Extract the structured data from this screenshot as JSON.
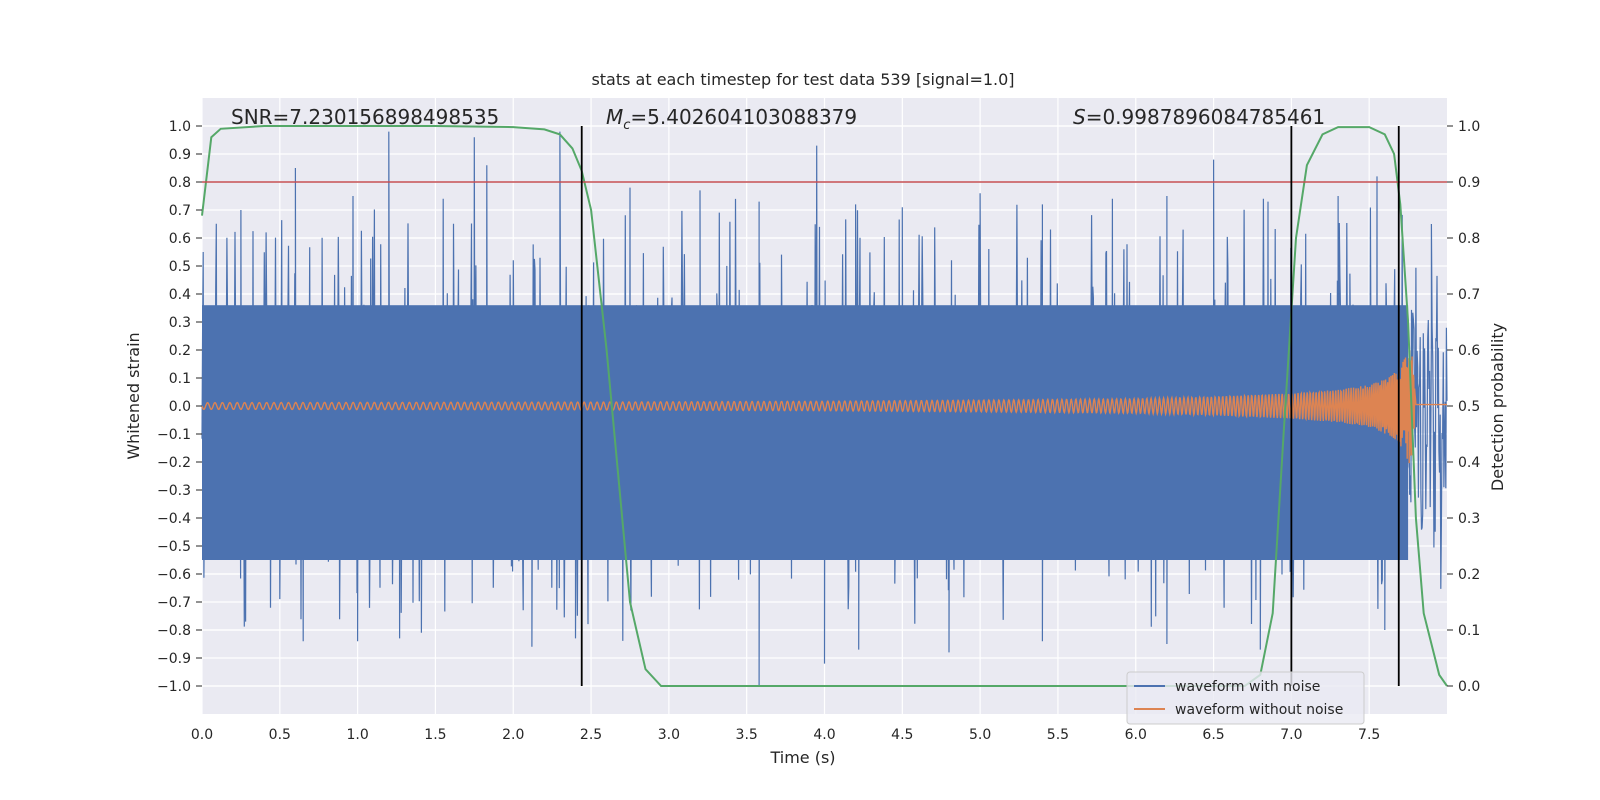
{
  "chart_data": {
    "type": "line",
    "title": "stats at each timestep for test data 539 [signal=1.0]",
    "xlabel": "Time (s)",
    "ylabel": "Whitened strain",
    "y2label": "Detection probability",
    "xlim": [
      0.0,
      8.0
    ],
    "ylim": [
      -1.1,
      1.1
    ],
    "y2lim": [
      -0.05,
      1.05
    ],
    "x_ticks": [
      "0.0",
      "0.5",
      "1.0",
      "1.5",
      "2.0",
      "2.5",
      "3.0",
      "3.5",
      "4.0",
      "4.5",
      "5.0",
      "5.5",
      "6.0",
      "6.5",
      "7.0",
      "7.5"
    ],
    "y_ticks": [
      "1.0",
      "0.9",
      "0.8",
      "0.7",
      "0.6",
      "0.5",
      "0.4",
      "0.3",
      "0.2",
      "0.1",
      "0.0",
      "−0.1",
      "−0.2",
      "−0.3",
      "−0.4",
      "−0.5",
      "−0.6",
      "−0.7",
      "−0.8",
      "−0.9",
      "−1.0"
    ],
    "y2_ticks": [
      "1.0",
      "0.9",
      "0.8",
      "0.7",
      "0.6",
      "0.5",
      "0.4",
      "0.3",
      "0.2",
      "0.1",
      "0.0"
    ],
    "grid": true,
    "annotations": {
      "snr": "SNR=7.230156898498535",
      "mc_symbol": "M",
      "mc_subscript": "c",
      "mc_value": "=5.402604103088379",
      "s_symbol": "S",
      "s_value": "=0.9987896084785461"
    },
    "threshold": {
      "axis": "right",
      "value": 0.9,
      "color": "#c44e52"
    },
    "vertical_lines": {
      "x": [
        2.44,
        7.0,
        7.69
      ],
      "color": "#000000"
    },
    "series": [
      {
        "name": "waveform with noise",
        "color": "#4c72b0",
        "axis": "left",
        "envelope_x": [
          0.0,
          7.75,
          8.0
        ],
        "envelope_lower": [
          -0.58,
          -0.58,
          -0.55
        ],
        "envelope_upper": [
          0.38,
          0.38,
          0.4
        ],
        "peak_x": [
          0.25,
          0.6,
          0.97,
          1.2,
          1.55,
          1.75,
          1.83,
          2.3,
          2.75,
          3.2,
          3.58,
          3.95,
          4.2,
          4.5,
          5.0,
          5.4,
          5.85,
          6.2,
          6.5,
          6.85,
          7.0,
          7.3,
          7.55,
          7.9
        ],
        "peak_y": [
          0.7,
          0.85,
          0.75,
          0.98,
          0.74,
          0.96,
          0.86,
          0.98,
          0.78,
          0.77,
          0.73,
          0.93,
          0.72,
          0.71,
          0.76,
          0.72,
          0.74,
          0.75,
          0.88,
          0.73,
          0.79,
          0.75,
          0.82,
          0.65
        ],
        "trough_x": [
          0.28,
          0.65,
          1.0,
          1.27,
          1.41,
          2.12,
          2.4,
          3.58,
          4.0,
          4.22,
          4.8,
          5.4,
          6.2,
          6.8,
          7.0,
          7.6
        ],
        "trough_y": [
          -0.77,
          -0.84,
          -0.84,
          -0.83,
          -0.81,
          -0.86,
          -0.83,
          -1.0,
          -0.92,
          -0.87,
          -0.88,
          -0.84,
          -0.85,
          -0.87,
          -0.83,
          -0.8
        ]
      },
      {
        "name": "waveform without noise",
        "color": "#dd8452",
        "axis": "left",
        "amp_x": [
          0.0,
          2.5,
          4.0,
          5.0,
          6.0,
          6.5,
          7.0,
          7.3,
          7.5,
          7.65,
          7.72,
          7.77,
          7.8,
          8.0
        ],
        "amp_y": [
          0.012,
          0.014,
          0.017,
          0.021,
          0.026,
          0.033,
          0.045,
          0.058,
          0.075,
          0.11,
          0.16,
          0.22,
          0.005,
          0.005
        ]
      },
      {
        "name": "Detection probability",
        "color": "#55a868",
        "axis": "right",
        "x": [
          0.0,
          0.06,
          0.12,
          0.4,
          1.0,
          1.5,
          2.0,
          2.2,
          2.3,
          2.38,
          2.44,
          2.5,
          2.6,
          2.75,
          2.85,
          2.95,
          3.5,
          5.0,
          6.0,
          6.7,
          6.8,
          6.88,
          6.95,
          7.03,
          7.1,
          7.2,
          7.3,
          7.5,
          7.6,
          7.66,
          7.7,
          7.75,
          7.8,
          7.85,
          7.95,
          8.0
        ],
        "y": [
          0.84,
          0.98,
          0.995,
          1.0,
          1.0,
          1.0,
          0.998,
          0.994,
          0.985,
          0.96,
          0.92,
          0.85,
          0.6,
          0.15,
          0.03,
          0.0,
          0.0,
          0.0,
          0.0,
          0.0,
          0.02,
          0.13,
          0.45,
          0.8,
          0.93,
          0.985,
          0.998,
          0.998,
          0.985,
          0.95,
          0.86,
          0.65,
          0.3,
          0.13,
          0.02,
          0.0
        ]
      }
    ],
    "legend": {
      "placement": "lower-right",
      "entries": [
        "waveform with noise",
        "waveform without noise"
      ]
    }
  }
}
